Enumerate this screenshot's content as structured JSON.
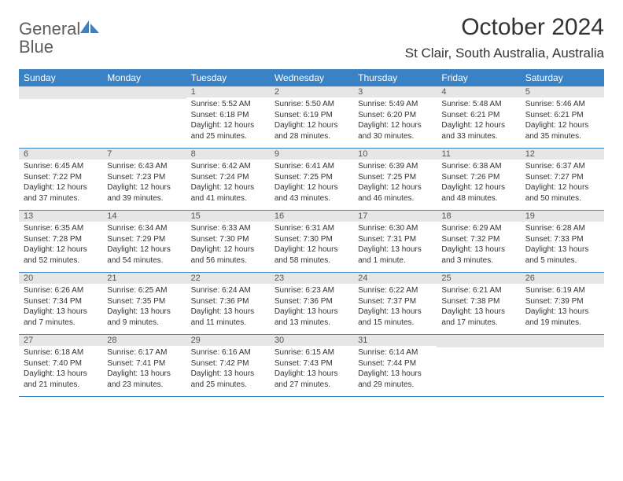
{
  "logo": {
    "text_general": "General",
    "text_blue": "Blue"
  },
  "title": "October 2024",
  "location": "St Clair, South Australia, Australia",
  "colors": {
    "header_bg": "#3b82c4",
    "header_text": "#ffffff",
    "band_bg": "#e6e6e6",
    "text": "#333333",
    "logo_gray": "#5e5e5e",
    "logo_blue": "#3b82c4",
    "page_bg": "#ffffff"
  },
  "day_names": [
    "Sunday",
    "Monday",
    "Tuesday",
    "Wednesday",
    "Thursday",
    "Friday",
    "Saturday"
  ],
  "weeks": [
    [
      {
        "blank": true
      },
      {
        "blank": true
      },
      {
        "n": "1",
        "sunrise": "5:52 AM",
        "sunset": "6:18 PM",
        "daylight": "12 hours and 25 minutes."
      },
      {
        "n": "2",
        "sunrise": "5:50 AM",
        "sunset": "6:19 PM",
        "daylight": "12 hours and 28 minutes."
      },
      {
        "n": "3",
        "sunrise": "5:49 AM",
        "sunset": "6:20 PM",
        "daylight": "12 hours and 30 minutes."
      },
      {
        "n": "4",
        "sunrise": "5:48 AM",
        "sunset": "6:21 PM",
        "daylight": "12 hours and 33 minutes."
      },
      {
        "n": "5",
        "sunrise": "5:46 AM",
        "sunset": "6:21 PM",
        "daylight": "12 hours and 35 minutes."
      }
    ],
    [
      {
        "n": "6",
        "sunrise": "6:45 AM",
        "sunset": "7:22 PM",
        "daylight": "12 hours and 37 minutes."
      },
      {
        "n": "7",
        "sunrise": "6:43 AM",
        "sunset": "7:23 PM",
        "daylight": "12 hours and 39 minutes."
      },
      {
        "n": "8",
        "sunrise": "6:42 AM",
        "sunset": "7:24 PM",
        "daylight": "12 hours and 41 minutes."
      },
      {
        "n": "9",
        "sunrise": "6:41 AM",
        "sunset": "7:25 PM",
        "daylight": "12 hours and 43 minutes."
      },
      {
        "n": "10",
        "sunrise": "6:39 AM",
        "sunset": "7:25 PM",
        "daylight": "12 hours and 46 minutes."
      },
      {
        "n": "11",
        "sunrise": "6:38 AM",
        "sunset": "7:26 PM",
        "daylight": "12 hours and 48 minutes."
      },
      {
        "n": "12",
        "sunrise": "6:37 AM",
        "sunset": "7:27 PM",
        "daylight": "12 hours and 50 minutes."
      }
    ],
    [
      {
        "n": "13",
        "sunrise": "6:35 AM",
        "sunset": "7:28 PM",
        "daylight": "12 hours and 52 minutes."
      },
      {
        "n": "14",
        "sunrise": "6:34 AM",
        "sunset": "7:29 PM",
        "daylight": "12 hours and 54 minutes."
      },
      {
        "n": "15",
        "sunrise": "6:33 AM",
        "sunset": "7:30 PM",
        "daylight": "12 hours and 56 minutes."
      },
      {
        "n": "16",
        "sunrise": "6:31 AM",
        "sunset": "7:30 PM",
        "daylight": "12 hours and 58 minutes."
      },
      {
        "n": "17",
        "sunrise": "6:30 AM",
        "sunset": "7:31 PM",
        "daylight": "13 hours and 1 minute."
      },
      {
        "n": "18",
        "sunrise": "6:29 AM",
        "sunset": "7:32 PM",
        "daylight": "13 hours and 3 minutes."
      },
      {
        "n": "19",
        "sunrise": "6:28 AM",
        "sunset": "7:33 PM",
        "daylight": "13 hours and 5 minutes."
      }
    ],
    [
      {
        "n": "20",
        "sunrise": "6:26 AM",
        "sunset": "7:34 PM",
        "daylight": "13 hours and 7 minutes."
      },
      {
        "n": "21",
        "sunrise": "6:25 AM",
        "sunset": "7:35 PM",
        "daylight": "13 hours and 9 minutes."
      },
      {
        "n": "22",
        "sunrise": "6:24 AM",
        "sunset": "7:36 PM",
        "daylight": "13 hours and 11 minutes."
      },
      {
        "n": "23",
        "sunrise": "6:23 AM",
        "sunset": "7:36 PM",
        "daylight": "13 hours and 13 minutes."
      },
      {
        "n": "24",
        "sunrise": "6:22 AM",
        "sunset": "7:37 PM",
        "daylight": "13 hours and 15 minutes."
      },
      {
        "n": "25",
        "sunrise": "6:21 AM",
        "sunset": "7:38 PM",
        "daylight": "13 hours and 17 minutes."
      },
      {
        "n": "26",
        "sunrise": "6:19 AM",
        "sunset": "7:39 PM",
        "daylight": "13 hours and 19 minutes."
      }
    ],
    [
      {
        "n": "27",
        "sunrise": "6:18 AM",
        "sunset": "7:40 PM",
        "daylight": "13 hours and 21 minutes."
      },
      {
        "n": "28",
        "sunrise": "6:17 AM",
        "sunset": "7:41 PM",
        "daylight": "13 hours and 23 minutes."
      },
      {
        "n": "29",
        "sunrise": "6:16 AM",
        "sunset": "7:42 PM",
        "daylight": "13 hours and 25 minutes."
      },
      {
        "n": "30",
        "sunrise": "6:15 AM",
        "sunset": "7:43 PM",
        "daylight": "13 hours and 27 minutes."
      },
      {
        "n": "31",
        "sunrise": "6:14 AM",
        "sunset": "7:44 PM",
        "daylight": "13 hours and 29 minutes."
      },
      {
        "blank": true
      },
      {
        "blank": true
      }
    ]
  ],
  "labels": {
    "sunrise": "Sunrise: ",
    "sunset": "Sunset: ",
    "daylight": "Daylight: "
  }
}
